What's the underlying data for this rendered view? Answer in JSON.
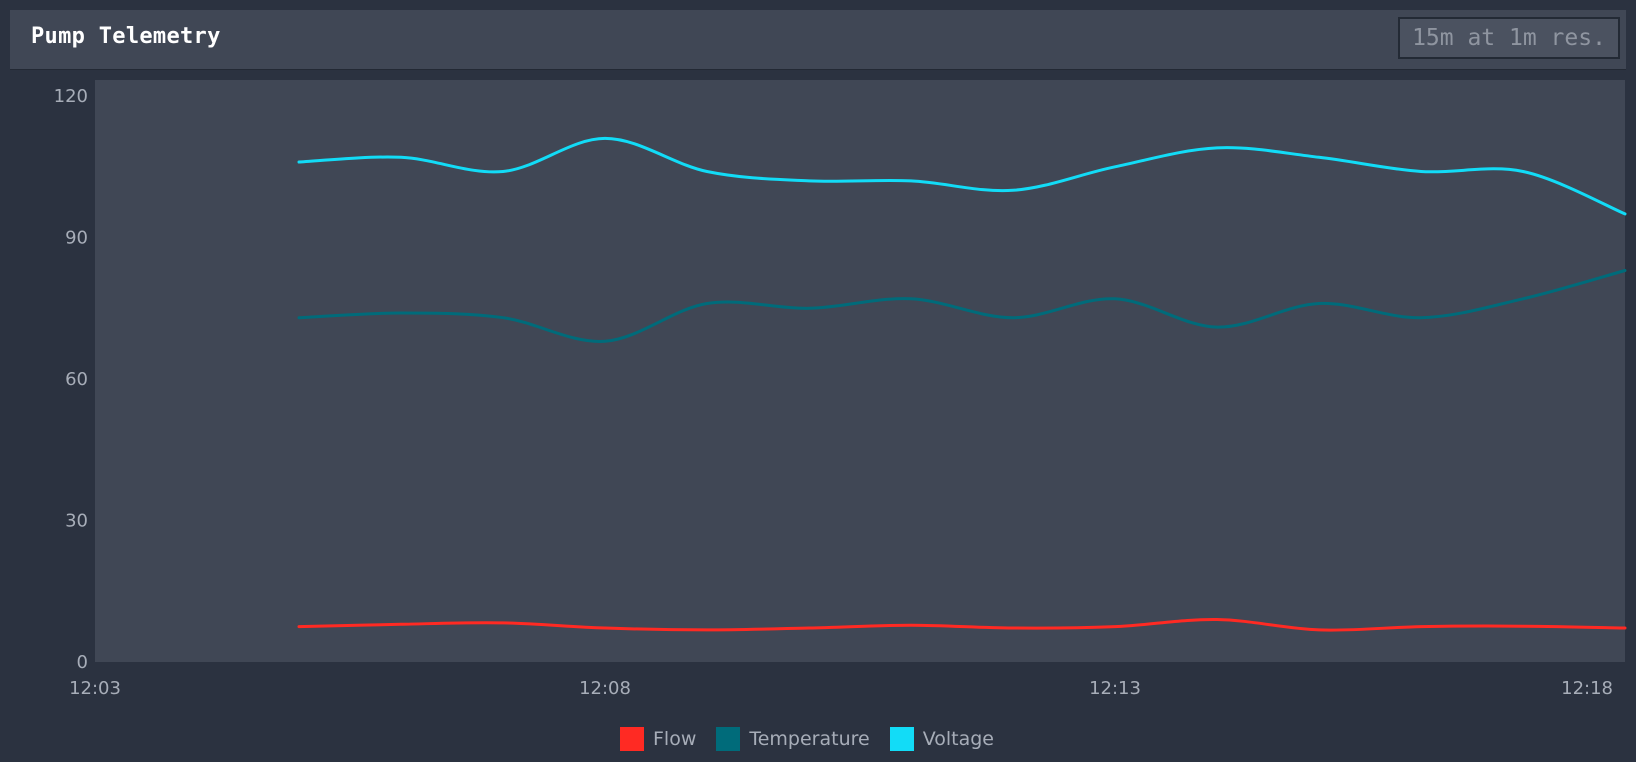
{
  "panel": {
    "title": "Pump Telemetry",
    "range_label": "15m at 1m res."
  },
  "colors": {
    "background": "#2b3240",
    "plot_background": "#404755",
    "flow": "#ff2a23",
    "temperature": "#006b7a",
    "voltage": "#12dcf7"
  },
  "chart_data": {
    "type": "line",
    "title": "Pump Telemetry",
    "xlabel": "",
    "ylabel": "",
    "x_ticks": [
      "12:03",
      "12:08",
      "12:13",
      "12:18"
    ],
    "x": [
      "12:05",
      "12:06",
      "12:07",
      "12:08",
      "12:09",
      "12:10",
      "12:11",
      "12:12",
      "12:13",
      "12:14",
      "12:15",
      "12:16",
      "12:17",
      "12:18"
    ],
    "x_minutes": [
      2,
      3,
      4,
      5,
      6,
      7,
      8,
      9,
      10,
      11,
      12,
      13,
      14,
      15
    ],
    "xlim_minutes": [
      0,
      15
    ],
    "ylim": [
      0,
      120
    ],
    "y_ticks": [
      0,
      30,
      60,
      90,
      120
    ],
    "grid": false,
    "legend_position": "bottom-center",
    "series": [
      {
        "name": "Flow",
        "color": "#ff2a23",
        "values": [
          7.5,
          8.0,
          8.3,
          7.2,
          6.8,
          7.2,
          7.8,
          7.2,
          7.5,
          9.0,
          6.8,
          7.5,
          7.6,
          7.2
        ]
      },
      {
        "name": "Temperature",
        "color": "#006b7a",
        "values": [
          73,
          74,
          73,
          68,
          76,
          75,
          77,
          73,
          77,
          71,
          76,
          73,
          77,
          83
        ]
      },
      {
        "name": "Voltage",
        "color": "#12dcf7",
        "values": [
          106,
          107,
          104,
          111,
          104,
          102,
          102,
          100,
          105,
          109,
          107,
          104,
          104,
          95
        ]
      }
    ]
  }
}
